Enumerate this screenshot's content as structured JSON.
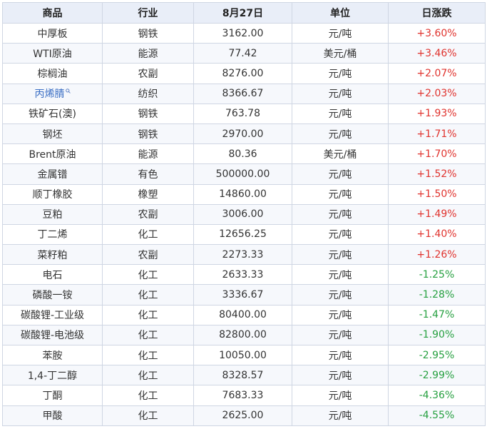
{
  "headers": [
    "商品",
    "行业",
    "8月27日",
    "单位",
    "日涨跌"
  ],
  "rows": [
    {
      "name": "中厚板",
      "industry": "钢铁",
      "price": "3162.00",
      "unit": "元/吨",
      "change": "+3.60%"
    },
    {
      "name": "WTI原油",
      "industry": "能源",
      "price": "77.42",
      "unit": "美元/桶",
      "change": "+3.46%"
    },
    {
      "name": "棕榈油",
      "industry": "农副",
      "price": "8276.00",
      "unit": "元/吨",
      "change": "+2.07%"
    },
    {
      "name": "丙烯腈",
      "industry": "纺织",
      "price": "8366.67",
      "unit": "元/吨",
      "change": "+2.03%",
      "link": true
    },
    {
      "name": "铁矿石(澳)",
      "industry": "钢铁",
      "price": "763.78",
      "unit": "元/吨",
      "change": "+1.93%"
    },
    {
      "name": "钢坯",
      "industry": "钢铁",
      "price": "2970.00",
      "unit": "元/吨",
      "change": "+1.71%"
    },
    {
      "name": "Brent原油",
      "industry": "能源",
      "price": "80.36",
      "unit": "美元/桶",
      "change": "+1.70%"
    },
    {
      "name": "金属镨",
      "industry": "有色",
      "price": "500000.00",
      "unit": "元/吨",
      "change": "+1.52%"
    },
    {
      "name": "顺丁橡胶",
      "industry": "橡塑",
      "price": "14860.00",
      "unit": "元/吨",
      "change": "+1.50%"
    },
    {
      "name": "豆粕",
      "industry": "农副",
      "price": "3006.00",
      "unit": "元/吨",
      "change": "+1.49%"
    },
    {
      "name": "丁二烯",
      "industry": "化工",
      "price": "12656.25",
      "unit": "元/吨",
      "change": "+1.40%"
    },
    {
      "name": "菜籽粕",
      "industry": "农副",
      "price": "2273.33",
      "unit": "元/吨",
      "change": "+1.26%"
    },
    {
      "name": "电石",
      "industry": "化工",
      "price": "2633.33",
      "unit": "元/吨",
      "change": "-1.25%"
    },
    {
      "name": "磷酸一铵",
      "industry": "化工",
      "price": "3336.67",
      "unit": "元/吨",
      "change": "-1.28%"
    },
    {
      "name": "碳酸锂-工业级",
      "industry": "化工",
      "price": "80400.00",
      "unit": "元/吨",
      "change": "-1.47%"
    },
    {
      "name": "碳酸锂-电池级",
      "industry": "化工",
      "price": "82800.00",
      "unit": "元/吨",
      "change": "-1.90%"
    },
    {
      "name": "苯胺",
      "industry": "化工",
      "price": "10050.00",
      "unit": "元/吨",
      "change": "-2.95%"
    },
    {
      "name": "1,4-丁二醇",
      "industry": "化工",
      "price": "8328.57",
      "unit": "元/吨",
      "change": "-2.99%"
    },
    {
      "name": "丁酮",
      "industry": "化工",
      "price": "7683.33",
      "unit": "元/吨",
      "change": "-4.36%"
    },
    {
      "name": "甲酸",
      "industry": "化工",
      "price": "2625.00",
      "unit": "元/吨",
      "change": "-4.55%"
    }
  ],
  "colors": {
    "up": "#e0322d",
    "down": "#26a040",
    "link": "#3a6ec4",
    "header_bg": "#e9eef8"
  },
  "icons": {
    "link_marker": "search-icon"
  }
}
